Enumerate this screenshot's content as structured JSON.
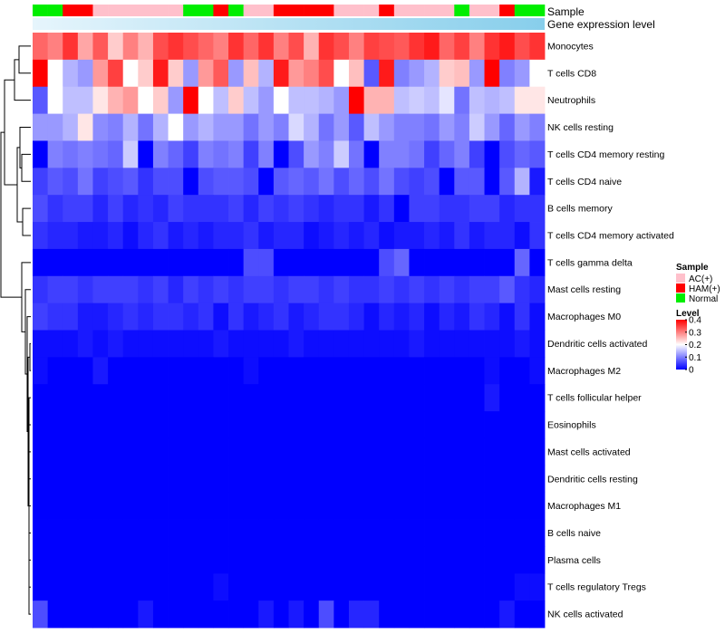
{
  "chart_data": {
    "type": "heatmap",
    "title": "",
    "rows": [
      "Monocytes",
      "T cells CD8",
      "Neutrophils",
      "NK cells resting",
      "T cells CD4 memory resting",
      "T cells CD4 naive",
      "B cells memory",
      "T cells CD4 memory activated",
      "T cells gamma delta",
      "Mast cells resting",
      "Macrophages M0",
      "Dendritic cells activated",
      "Macrophages M2",
      "T cells follicular helper",
      "Eosinophils",
      "Mast cells activated",
      "Dendritic cells resting",
      "Macrophages M1",
      "B cells naive",
      "Plasma cells",
      "T cells regulatory  Tregs",
      "NK cells activated"
    ],
    "n_columns": 34,
    "column_groups": [
      "Normal",
      "Normal",
      "HAM(+)",
      "HAM(+)",
      "AC(+)",
      "AC(+)",
      "AC(+)",
      "AC(+)",
      "AC(+)",
      "AC(+)",
      "Normal",
      "Normal",
      "HAM(+)",
      "Normal",
      "AC(+)",
      "AC(+)",
      "HAM(+)",
      "HAM(+)",
      "HAM(+)",
      "HAM(+)",
      "AC(+)",
      "AC(+)",
      "AC(+)",
      "HAM(+)",
      "AC(+)",
      "AC(+)",
      "AC(+)",
      "AC(+)",
      "Normal",
      "AC(+)",
      "AC(+)",
      "HAM(+)",
      "Normal",
      "Normal"
    ],
    "values": [
      [
        0.32,
        0.3,
        0.36,
        0.27,
        0.33,
        0.24,
        0.3,
        0.26,
        0.34,
        0.36,
        0.34,
        0.32,
        0.3,
        0.36,
        0.32,
        0.36,
        0.3,
        0.34,
        0.26,
        0.36,
        0.34,
        0.3,
        0.35,
        0.34,
        0.33,
        0.36,
        0.38,
        0.32,
        0.35,
        0.3,
        0.36,
        0.38,
        0.34,
        0.36
      ],
      [
        0.4,
        0.2,
        0.14,
        0.12,
        0.28,
        0.35,
        0.2,
        0.24,
        0.38,
        0.24,
        0.12,
        0.28,
        0.33,
        0.12,
        0.25,
        0.14,
        0.38,
        0.28,
        0.3,
        0.34,
        0.2,
        0.25,
        0.07,
        0.38,
        0.1,
        0.12,
        0.14,
        0.24,
        0.25,
        0.12,
        0.4,
        0.1,
        0.12,
        0.2
      ],
      [
        0.07,
        0.2,
        0.15,
        0.15,
        0.22,
        0.26,
        0.28,
        0.2,
        0.24,
        0.12,
        0.4,
        0.2,
        0.15,
        0.24,
        0.15,
        0.12,
        0.2,
        0.15,
        0.15,
        0.14,
        0.12,
        0.4,
        0.26,
        0.26,
        0.15,
        0.16,
        0.15,
        0.18,
        0.09,
        0.15,
        0.14,
        0.15,
        0.22,
        0.22
      ],
      [
        0.12,
        0.12,
        0.14,
        0.22,
        0.11,
        0.1,
        0.14,
        0.09,
        0.14,
        0.2,
        0.12,
        0.14,
        0.12,
        0.12,
        0.09,
        0.12,
        0.1,
        0.17,
        0.14,
        0.09,
        0.12,
        0.07,
        0.15,
        0.12,
        0.1,
        0.1,
        0.09,
        0.12,
        0.1,
        0.16,
        0.12,
        0.08,
        0.12,
        0.1
      ],
      [
        0.0,
        0.1,
        0.09,
        0.1,
        0.09,
        0.08,
        0.16,
        0.0,
        0.1,
        0.08,
        0.05,
        0.1,
        0.09,
        0.1,
        0.05,
        0.1,
        0.0,
        0.06,
        0.12,
        0.1,
        0.16,
        0.09,
        0.0,
        0.1,
        0.1,
        0.09,
        0.05,
        0.08,
        0.1,
        0.05,
        0.0,
        0.06,
        0.08,
        0.07
      ],
      [
        0.05,
        0.07,
        0.06,
        0.09,
        0.05,
        0.06,
        0.07,
        0.04,
        0.06,
        0.06,
        0.0,
        0.06,
        0.07,
        0.07,
        0.06,
        0.0,
        0.07,
        0.08,
        0.07,
        0.09,
        0.06,
        0.08,
        0.06,
        0.09,
        0.06,
        0.05,
        0.06,
        0.0,
        0.07,
        0.07,
        0.0,
        0.07,
        0.14,
        0.02
      ],
      [
        0.06,
        0.04,
        0.05,
        0.05,
        0.03,
        0.05,
        0.03,
        0.04,
        0.03,
        0.05,
        0.04,
        0.04,
        0.04,
        0.05,
        0.03,
        0.05,
        0.04,
        0.05,
        0.04,
        0.03,
        0.04,
        0.04,
        0.02,
        0.04,
        0.0,
        0.05,
        0.05,
        0.04,
        0.04,
        0.05,
        0.05,
        0.03,
        0.04,
        0.04
      ],
      [
        0.04,
        0.03,
        0.03,
        0.02,
        0.02,
        0.03,
        0.01,
        0.03,
        0.04,
        0.02,
        0.03,
        0.02,
        0.03,
        0.03,
        0.04,
        0.02,
        0.03,
        0.03,
        0.01,
        0.02,
        0.03,
        0.02,
        0.03,
        0.01,
        0.02,
        0.02,
        0.03,
        0.02,
        0.04,
        0.02,
        0.03,
        0.03,
        0.01,
        0.04
      ],
      [
        0.0,
        0.0,
        0.0,
        0.0,
        0.0,
        0.0,
        0.0,
        0.0,
        0.0,
        0.0,
        0.0,
        0.0,
        0.0,
        0.0,
        0.06,
        0.06,
        0.0,
        0.0,
        0.0,
        0.0,
        0.0,
        0.0,
        0.0,
        0.06,
        0.08,
        0.0,
        0.0,
        0.0,
        0.0,
        0.0,
        0.0,
        0.0,
        0.08,
        0.0
      ],
      [
        0.04,
        0.05,
        0.05,
        0.04,
        0.05,
        0.05,
        0.05,
        0.04,
        0.05,
        0.03,
        0.05,
        0.04,
        0.05,
        0.04,
        0.05,
        0.05,
        0.04,
        0.05,
        0.05,
        0.04,
        0.05,
        0.04,
        0.04,
        0.05,
        0.04,
        0.05,
        0.04,
        0.05,
        0.04,
        0.05,
        0.05,
        0.07,
        0.04,
        0.03
      ],
      [
        0.05,
        0.04,
        0.04,
        0.02,
        0.02,
        0.03,
        0.04,
        0.03,
        0.04,
        0.04,
        0.03,
        0.04,
        0.01,
        0.04,
        0.02,
        0.03,
        0.04,
        0.02,
        0.03,
        0.04,
        0.04,
        0.03,
        0.01,
        0.03,
        0.02,
        0.03,
        0.01,
        0.03,
        0.02,
        0.04,
        0.03,
        0.01,
        0.04,
        0.01
      ],
      [
        0.01,
        0.01,
        0.01,
        0.02,
        0.01,
        0.02,
        0.01,
        0.01,
        0.01,
        0.01,
        0.01,
        0.01,
        0.02,
        0.01,
        0.01,
        0.01,
        0.01,
        0.02,
        0.01,
        0.01,
        0.01,
        0.01,
        0.01,
        0.01,
        0.01,
        0.02,
        0.01,
        0.01,
        0.01,
        0.01,
        0.01,
        0.01,
        0.02,
        0.01
      ],
      [
        0.01,
        0.0,
        0.0,
        0.0,
        0.02,
        0.0,
        0.0,
        0.0,
        0.0,
        0.0,
        0.0,
        0.0,
        0.0,
        0.0,
        0.01,
        0.0,
        0.0,
        0.0,
        0.0,
        0.0,
        0.0,
        0.0,
        0.0,
        0.0,
        0.0,
        0.0,
        0.0,
        0.0,
        0.0,
        0.0,
        0.01,
        0.0,
        0.0,
        0.01
      ],
      [
        0.0,
        0.0,
        0.0,
        0.0,
        0.0,
        0.0,
        0.0,
        0.0,
        0.0,
        0.0,
        0.0,
        0.0,
        0.0,
        0.0,
        0.0,
        0.0,
        0.0,
        0.0,
        0.0,
        0.0,
        0.0,
        0.0,
        0.0,
        0.0,
        0.0,
        0.0,
        0.0,
        0.0,
        0.0,
        0.0,
        0.02,
        0.0,
        0.0,
        0.0
      ],
      [
        0,
        0,
        0,
        0,
        0,
        0,
        0,
        0,
        0,
        0,
        0,
        0,
        0,
        0,
        0,
        0,
        0,
        0,
        0,
        0,
        0,
        0,
        0,
        0,
        0,
        0,
        0,
        0,
        0,
        0,
        0,
        0,
        0,
        0
      ],
      [
        0,
        0,
        0,
        0,
        0,
        0,
        0,
        0,
        0,
        0,
        0,
        0,
        0,
        0,
        0,
        0,
        0,
        0,
        0,
        0,
        0,
        0,
        0,
        0,
        0,
        0,
        0,
        0,
        0,
        0,
        0,
        0,
        0,
        0
      ],
      [
        0,
        0,
        0,
        0,
        0,
        0,
        0,
        0,
        0,
        0,
        0,
        0,
        0,
        0,
        0,
        0,
        0,
        0,
        0,
        0,
        0,
        0,
        0,
        0,
        0,
        0,
        0,
        0,
        0,
        0,
        0,
        0,
        0,
        0
      ],
      [
        0,
        0,
        0,
        0,
        0,
        0,
        0,
        0,
        0,
        0,
        0,
        0,
        0,
        0,
        0,
        0,
        0,
        0,
        0,
        0,
        0,
        0,
        0,
        0,
        0,
        0,
        0,
        0,
        0,
        0,
        0,
        0,
        0,
        0
      ],
      [
        0,
        0,
        0,
        0,
        0,
        0,
        0,
        0,
        0,
        0,
        0,
        0,
        0,
        0,
        0,
        0,
        0,
        0,
        0,
        0,
        0,
        0,
        0,
        0,
        0,
        0,
        0,
        0,
        0,
        0,
        0,
        0,
        0,
        0
      ],
      [
        0,
        0,
        0,
        0,
        0,
        0,
        0,
        0,
        0,
        0,
        0,
        0,
        0,
        0,
        0,
        0,
        0,
        0,
        0,
        0,
        0,
        0,
        0,
        0,
        0,
        0,
        0,
        0,
        0,
        0,
        0,
        0,
        0,
        0
      ],
      [
        0,
        0,
        0,
        0,
        0,
        0,
        0,
        0,
        0,
        0,
        0,
        0,
        0.01,
        0,
        0,
        0,
        0,
        0,
        0,
        0,
        0,
        0,
        0,
        0,
        0,
        0,
        0,
        0,
        0,
        0,
        0,
        0,
        0.01,
        0.01
      ],
      [
        0.06,
        0.0,
        0.0,
        0.0,
        0.0,
        0.0,
        0.0,
        0.02,
        0.0,
        0.0,
        0.0,
        0.0,
        0.0,
        0.0,
        0.0,
        0.02,
        0.0,
        0.02,
        0.0,
        0.06,
        0.0,
        0.03,
        0.03,
        0.0,
        0.0,
        0.0,
        0.0,
        0.0,
        0.0,
        0.0,
        0.0,
        0.02,
        0.0,
        0.0
      ]
    ],
    "scale": {
      "min": 0,
      "max": 0.4,
      "colors": [
        "#0000ff",
        "#ffffff",
        "#ff0000"
      ],
      "ticks": [
        0.4,
        0.3,
        0.2,
        0.1,
        0
      ]
    },
    "annotations": {
      "sample_label": "Sample",
      "expression_label": "Gene expression level",
      "expression_gradient": [
        "#e6f5fc",
        "#87ceeb"
      ]
    },
    "legend": {
      "sample_title": "Sample",
      "sample_items": [
        {
          "label": "AC(+)",
          "color": "#ffc0cb"
        },
        {
          "label": "HAM(+)",
          "color": "#ff0000"
        },
        {
          "label": "Normal",
          "color": "#00ee00"
        }
      ],
      "level_title": "Level",
      "level_ticks": [
        "0.4",
        "0.3",
        "0.2",
        "0.1",
        "0"
      ],
      "position": "right"
    },
    "dendrogram": "rows"
  }
}
